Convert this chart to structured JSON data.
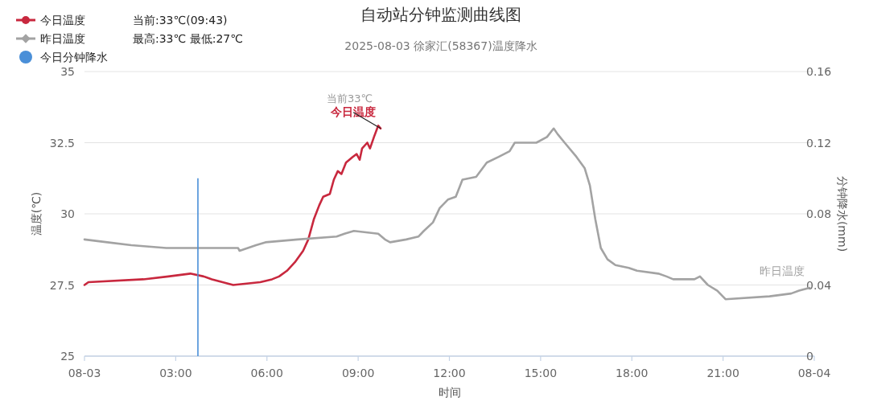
{
  "chart_data": {
    "type": "line",
    "title": "自动站分钟监测曲线图",
    "subtitle": "2025-08-03 徐家汇(58367)温度降水",
    "xlabel": "时间",
    "ylabel": "温度(℃)",
    "y2label": "分钟降水(mm)",
    "xlim": [
      0,
      24
    ],
    "xticks": [
      {
        "value": 0,
        "label": "08-03"
      },
      {
        "value": 3,
        "label": "03:00"
      },
      {
        "value": 6,
        "label": "06:00"
      },
      {
        "value": 9,
        "label": "09:00"
      },
      {
        "value": 12,
        "label": "12:00"
      },
      {
        "value": 15,
        "label": "15:00"
      },
      {
        "value": 18,
        "label": "18:00"
      },
      {
        "value": 21,
        "label": "21:00"
      },
      {
        "value": 24,
        "label": "08-04"
      }
    ],
    "ylim": [
      25,
      35
    ],
    "yticks": [
      25,
      27.5,
      30,
      32.5,
      35
    ],
    "y2lim": [
      0,
      0.16
    ],
    "y2ticks": [
      0,
      0.04,
      0.08,
      0.12,
      0.16
    ],
    "grid": "y",
    "legend": "top left",
    "series": [
      {
        "name": "今日温度",
        "color": "#c8283e",
        "x": [
          0,
          0.13,
          1.94,
          2.76,
          3.48,
          3.92,
          4.19,
          4.54,
          4.89,
          5.78,
          6.17,
          6.4,
          6.66,
          6.92,
          7.19,
          7.36,
          7.54,
          7.72,
          7.85,
          8.07,
          8.2,
          8.33,
          8.45,
          8.6,
          8.82,
          8.95,
          9.05,
          9.13,
          9.3,
          9.39,
          9.52,
          9.66,
          9.74
        ],
        "values": [
          27.5,
          27.6,
          27.7,
          27.8,
          27.9,
          27.8,
          27.7,
          27.6,
          27.5,
          27.6,
          27.7,
          27.8,
          28.0,
          28.3,
          28.7,
          29.1,
          29.8,
          30.3,
          30.6,
          30.7,
          31.2,
          31.5,
          31.4,
          31.8,
          32.0,
          32.1,
          31.9,
          32.3,
          32.5,
          32.3,
          32.7,
          33.1,
          33.0
        ]
      },
      {
        "name": "昨日温度",
        "color": "#a3a3a3",
        "x": [
          0,
          0.75,
          1.54,
          2.69,
          5.05,
          5.1,
          5.64,
          5.95,
          7.01,
          8.29,
          8.55,
          8.86,
          9.66,
          9.88,
          10.05,
          10.58,
          10.98,
          11.16,
          11.46,
          11.68,
          11.95,
          12.21,
          12.43,
          12.88,
          13.23,
          13.62,
          13.98,
          14.15,
          14.86,
          15.21,
          15.43,
          15.56,
          15.79,
          16.18,
          16.45,
          16.62,
          16.8,
          16.98,
          17.2,
          17.46,
          17.9,
          18.17,
          18.87,
          19.14,
          19.36,
          20.06,
          20.24,
          20.5,
          20.81,
          21.08,
          22.53,
          23.24,
          23.5,
          23.85
        ],
        "values": [
          29.1,
          29.0,
          28.9,
          28.8,
          28.8,
          28.7,
          28.9,
          29.0,
          29.1,
          29.2,
          29.3,
          29.4,
          29.3,
          29.1,
          29.0,
          29.1,
          29.2,
          29.4,
          29.7,
          30.2,
          30.5,
          30.6,
          31.2,
          31.3,
          31.8,
          32.0,
          32.2,
          32.5,
          32.5,
          32.7,
          33.0,
          32.8,
          32.5,
          32.0,
          31.6,
          31.0,
          29.8,
          28.8,
          28.4,
          28.2,
          28.1,
          28.0,
          27.9,
          27.8,
          27.7,
          27.7,
          27.8,
          27.5,
          27.3,
          27.0,
          27.1,
          27.2,
          27.3,
          27.4
        ]
      },
      {
        "name": "今日分钟降水",
        "type": "bar",
        "axis": "y2",
        "color": "#4a8fd8",
        "x": [
          3.73
        ],
        "values": [
          0.1
        ]
      }
    ],
    "annotations": [
      "当前:33℃(09:43)",
      "最高:33℃ 最低:27℃",
      {
        "text": "当前33℃",
        "x": 9.74,
        "y": 33.0
      }
    ]
  }
}
